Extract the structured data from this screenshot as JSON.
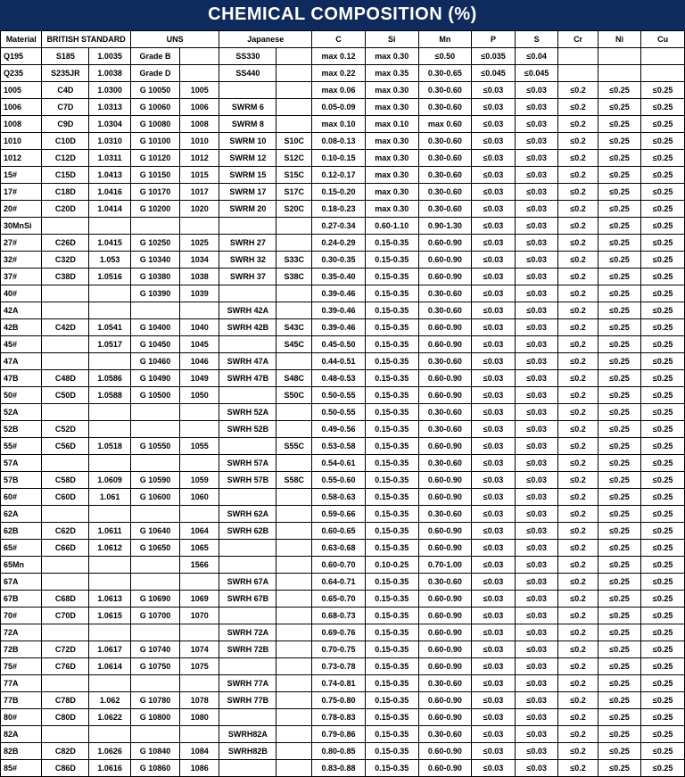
{
  "title": "CHEMICAL COMPOSITION (%)",
  "header": {
    "groups": [
      {
        "label": "Material",
        "span": 1
      },
      {
        "label": "BRITISH STANDARD",
        "span": 2
      },
      {
        "label": "UNS",
        "span": 2
      },
      {
        "label": "Japanese",
        "span": 2
      },
      {
        "label": "C",
        "span": 1
      },
      {
        "label": "Si",
        "span": 1
      },
      {
        "label": "Mn",
        "span": 1
      },
      {
        "label": "P",
        "span": 1
      },
      {
        "label": "S",
        "span": 1
      },
      {
        "label": "Cr",
        "span": 1
      },
      {
        "label": "Ni",
        "span": 1
      },
      {
        "label": "Cu",
        "span": 1
      }
    ]
  },
  "rows": [
    [
      "Q195",
      "S185",
      "1.0035",
      "Grade B",
      "",
      "SS330",
      "",
      "max 0.12",
      "max 0.30",
      "≤0.50",
      "≤0.035",
      "≤0.04",
      "",
      "",
      ""
    ],
    [
      "Q235",
      "S235JR",
      "1.0038",
      "Grade D",
      "",
      "SS440",
      "",
      "max 0.22",
      "max 0.35",
      "0.30-0.65",
      "≤0.045",
      "≤0.045",
      "",
      "",
      ""
    ],
    [
      "1005",
      "C4D",
      "1.0300",
      "G 10050",
      "1005",
      "",
      "",
      "max 0.06",
      "max 0.30",
      "0.30-0.60",
      "≤0.03",
      "≤0.03",
      "≤0.2",
      "≤0.25",
      "≤0.25"
    ],
    [
      "1006",
      "C7D",
      "1.0313",
      "G 10060",
      "1006",
      "SWRM 6",
      "",
      "0.05-0.09",
      "max 0.30",
      "0.30-0.60",
      "≤0.03",
      "≤0.03",
      "≤0.2",
      "≤0.25",
      "≤0.25"
    ],
    [
      "1008",
      "C9D",
      "1.0304",
      "G 10080",
      "1008",
      "SWRM 8",
      "",
      "max 0.10",
      "max 0.10",
      "max 0.60",
      "≤0.03",
      "≤0.03",
      "≤0.2",
      "≤0.25",
      "≤0.25"
    ],
    [
      "1010",
      "C10D",
      "1.0310",
      "G 10100",
      "1010",
      "SWRM 10",
      "S10C",
      "0.08-0.13",
      "max 0.30",
      "0.30-0.60",
      "≤0.03",
      "≤0.03",
      "≤0.2",
      "≤0.25",
      "≤0.25"
    ],
    [
      "1012",
      "C12D",
      "1.0311",
      "G 10120",
      "1012",
      "SWRM 12",
      "S12C",
      "0.10-0.15",
      "max 0.30",
      "0.30-0.60",
      "≤0.03",
      "≤0.03",
      "≤0.2",
      "≤0.25",
      "≤0.25"
    ],
    [
      "15#",
      "C15D",
      "1.0413",
      "G 10150",
      "1015",
      "SWRM 15",
      "S15C",
      "0.12-0.17",
      "max 0.30",
      "0.30-0.60",
      "≤0.03",
      "≤0.03",
      "≤0.2",
      "≤0.25",
      "≤0.25"
    ],
    [
      "17#",
      "C18D",
      "1.0416",
      "G 10170",
      "1017",
      "SWRM 17",
      "S17C",
      "0.15-0.20",
      "max 0.30",
      "0.30-0.60",
      "≤0.03",
      "≤0.03",
      "≤0.2",
      "≤0.25",
      "≤0.25"
    ],
    [
      "20#",
      "C20D",
      "1.0414",
      "G 10200",
      "1020",
      "SWRM 20",
      "S20C",
      "0.18-0.23",
      "max 0.30",
      "0.30-0.60",
      "≤0.03",
      "≤0.03",
      "≤0.2",
      "≤0.25",
      "≤0.25"
    ],
    [
      "30MnSi",
      "",
      "",
      "",
      "",
      "",
      "",
      "0.27-0.34",
      "0.60-1.10",
      "0.90-1.30",
      "≤0.03",
      "≤0.03",
      "≤0.2",
      "≤0.25",
      "≤0.25"
    ],
    [
      "27#",
      "C26D",
      "1.0415",
      "G 10250",
      "1025",
      "SWRH 27",
      "",
      "0.24-0.29",
      "0.15-0.35",
      "0.60-0.90",
      "≤0.03",
      "≤0.03",
      "≤0.2",
      "≤0.25",
      "≤0.25"
    ],
    [
      "32#",
      "C32D",
      "1.053",
      "G 10340",
      "1034",
      "SWRH 32",
      "S33C",
      "0.30-0.35",
      "0.15-0.35",
      "0.60-0.90",
      "≤0.03",
      "≤0.03",
      "≤0.2",
      "≤0.25",
      "≤0.25"
    ],
    [
      "37#",
      "C38D",
      "1.0516",
      "G 10380",
      "1038",
      "SWRH 37",
      "S38C",
      "0.35-0.40",
      "0.15-0.35",
      "0.60-0.90",
      "≤0.03",
      "≤0.03",
      "≤0.2",
      "≤0.25",
      "≤0.25"
    ],
    [
      "40#",
      "",
      "",
      "G 10390",
      "1039",
      "",
      "",
      "0.39-0.46",
      "0.15-0.35",
      "0.30-0.60",
      "≤0.03",
      "≤0.03",
      "≤0.2",
      "≤0.25",
      "≤0.25"
    ],
    [
      "42A",
      "",
      "",
      "",
      "",
      "SWRH 42A",
      "",
      "0.39-0.46",
      "0.15-0.35",
      "0.30-0.60",
      "≤0.03",
      "≤0.03",
      "≤0.2",
      "≤0.25",
      "≤0.25"
    ],
    [
      "42B",
      "C42D",
      "1.0541",
      "G 10400",
      "1040",
      "SWRH 42B",
      "S43C",
      "0.39-0.46",
      "0.15-0.35",
      "0.60-0.90",
      "≤0.03",
      "≤0.03",
      "≤0.2",
      "≤0.25",
      "≤0.25"
    ],
    [
      "45#",
      "",
      "1.0517",
      "G 10450",
      "1045",
      "",
      "S45C",
      "0.45-0.50",
      "0.15-0.35",
      "0.60-0.90",
      "≤0.03",
      "≤0.03",
      "≤0.2",
      "≤0.25",
      "≤0.25"
    ],
    [
      "47A",
      "",
      "",
      "G 10460",
      "1046",
      "SWRH 47A",
      "",
      "0.44-0.51",
      "0.15-0.35",
      "0.30-0.60",
      "≤0.03",
      "≤0.03",
      "≤0.2",
      "≤0.25",
      "≤0.25"
    ],
    [
      "47B",
      "C48D",
      "1.0586",
      "G 10490",
      "1049",
      "SWRH 47B",
      "S48C",
      "0.48-0.53",
      "0.15-0.35",
      "0.60-0.90",
      "≤0.03",
      "≤0.03",
      "≤0.2",
      "≤0.25",
      "≤0.25"
    ],
    [
      "50#",
      "C50D",
      "1.0588",
      "G 10500",
      "1050",
      "",
      "S50C",
      "0.50-0.55",
      "0.15-0.35",
      "0.60-0.90",
      "≤0.03",
      "≤0.03",
      "≤0.2",
      "≤0.25",
      "≤0.25"
    ],
    [
      "52A",
      "",
      "",
      "",
      "",
      "SWRH 52A",
      "",
      "0.50-0.55",
      "0.15-0.35",
      "0.30-0.60",
      "≤0.03",
      "≤0.03",
      "≤0.2",
      "≤0.25",
      "≤0.25"
    ],
    [
      "52B",
      "C52D",
      "",
      "",
      "",
      "SWRH 52B",
      "",
      "0.49-0.56",
      "0.15-0.35",
      "0.30-0.60",
      "≤0.03",
      "≤0.03",
      "≤0.2",
      "≤0.25",
      "≤0.25"
    ],
    [
      "55#",
      "C56D",
      "1.0518",
      "G 10550",
      "1055",
      "",
      "S55C",
      "0.53-0.58",
      "0.15-0.35",
      "0.60-0.90",
      "≤0.03",
      "≤0.03",
      "≤0.2",
      "≤0.25",
      "≤0.25"
    ],
    [
      "57A",
      "",
      "",
      "",
      "",
      "SWRH 57A",
      "",
      "0.54-0.61",
      "0.15-0.35",
      "0.30-0.60",
      "≤0.03",
      "≤0.03",
      "≤0.2",
      "≤0.25",
      "≤0.25"
    ],
    [
      "57B",
      "C58D",
      "1.0609",
      "G 10590",
      "1059",
      "SWRH 57B",
      "S58C",
      "0.55-0.60",
      "0.15-0.35",
      "0.60-0.90",
      "≤0.03",
      "≤0.03",
      "≤0.2",
      "≤0.25",
      "≤0.25"
    ],
    [
      "60#",
      "C60D",
      "1.061",
      "G 10600",
      "1060",
      "",
      "",
      "0.58-0.63",
      "0.15-0.35",
      "0.60-0.90",
      "≤0.03",
      "≤0.03",
      "≤0.2",
      "≤0.25",
      "≤0.25"
    ],
    [
      "62A",
      "",
      "",
      "",
      "",
      "SWRH 62A",
      "",
      "0.59-0.66",
      "0.15-0.35",
      "0.30-0.60",
      "≤0.03",
      "≤0.03",
      "≤0.2",
      "≤0.25",
      "≤0.25"
    ],
    [
      "62B",
      "C62D",
      "1.0611",
      "G 10640",
      "1064",
      "SWRH 62B",
      "",
      "0.60-0.65",
      "0.15-0.35",
      "0.60-0.90",
      "≤0.03",
      "≤0.03",
      "≤0.2",
      "≤0.25",
      "≤0.25"
    ],
    [
      "65#",
      "C66D",
      "1.0612",
      "G 10650",
      "1065",
      "",
      "",
      "0.63-0.68",
      "0.15-0.35",
      "0.60-0.90",
      "≤0.03",
      "≤0.03",
      "≤0.2",
      "≤0.25",
      "≤0.25"
    ],
    [
      "65Mn",
      "",
      "",
      "",
      "1566",
      "",
      "",
      "0.60-0.70",
      "0.10-0.25",
      "0.70-1.00",
      "≤0.03",
      "≤0.03",
      "≤0.2",
      "≤0.25",
      "≤0.25"
    ],
    [
      "67A",
      "",
      "",
      "",
      "",
      "SWRH 67A",
      "",
      "0.64-0.71",
      "0.15-0.35",
      "0.30-0.60",
      "≤0.03",
      "≤0.03",
      "≤0.2",
      "≤0.25",
      "≤0.25"
    ],
    [
      "67B",
      "C68D",
      "1.0613",
      "G 10690",
      "1069",
      "SWRH 67B",
      "",
      "0.65-0.70",
      "0.15-0.35",
      "0.60-0.90",
      "≤0.03",
      "≤0.03",
      "≤0.2",
      "≤0.25",
      "≤0.25"
    ],
    [
      "70#",
      "C70D",
      "1.0615",
      "G 10700",
      "1070",
      "",
      "",
      "0.68-0.73",
      "0.15-0.35",
      "0.60-0.90",
      "≤0.03",
      "≤0.03",
      "≤0.2",
      "≤0.25",
      "≤0.25"
    ],
    [
      "72A",
      "",
      "",
      "",
      "",
      "SWRH 72A",
      "",
      "0.69-0.76",
      "0.15-0.35",
      "0.60-0.90",
      "≤0.03",
      "≤0.03",
      "≤0.2",
      "≤0.25",
      "≤0.25"
    ],
    [
      "72B",
      "C72D",
      "1.0617",
      "G 10740",
      "1074",
      "SWRH 72B",
      "",
      "0.70-0.75",
      "0.15-0.35",
      "0.60-0.90",
      "≤0.03",
      "≤0.03",
      "≤0.2",
      "≤0.25",
      "≤0.25"
    ],
    [
      "75#",
      "C76D",
      "1.0614",
      "G 10750",
      "1075",
      "",
      "",
      "0.73-0.78",
      "0.15-0.35",
      "0.60-0.90",
      "≤0.03",
      "≤0.03",
      "≤0.2",
      "≤0.25",
      "≤0.25"
    ],
    [
      "77A",
      "",
      "",
      "",
      "",
      "SWRH 77A",
      "",
      "0.74-0.81",
      "0.15-0.35",
      "0.30-0.60",
      "≤0.03",
      "≤0.03",
      "≤0.2",
      "≤0.25",
      "≤0.25"
    ],
    [
      "77B",
      "C78D",
      "1.062",
      "G 10780",
      "1078",
      "SWRH 77B",
      "",
      "0.75-0.80",
      "0.15-0.35",
      "0.60-0.90",
      "≤0.03",
      "≤0.03",
      "≤0.2",
      "≤0.25",
      "≤0.25"
    ],
    [
      "80#",
      "C80D",
      "1.0622",
      "G 10800",
      "1080",
      "",
      "",
      "0.78-0.83",
      "0.15-0.35",
      "0.60-0.90",
      "≤0.03",
      "≤0.03",
      "≤0.2",
      "≤0.25",
      "≤0.25"
    ],
    [
      "82A",
      "",
      "",
      "",
      "",
      "SWRH82A",
      "",
      "0.79-0.86",
      "0.15-0.35",
      "0.30-0.60",
      "≤0.03",
      "≤0.03",
      "≤0.2",
      "≤0.25",
      "≤0.25"
    ],
    [
      "82B",
      "C82D",
      "1.0626",
      "G 10840",
      "1084",
      "SWRH82B",
      "",
      "0.80-0.85",
      "0.15-0.35",
      "0.60-0.90",
      "≤0.03",
      "≤0.03",
      "≤0.2",
      "≤0.25",
      "≤0.25"
    ],
    [
      "85#",
      "C86D",
      "1.0616",
      "G 10860",
      "1086",
      "",
      "",
      "0.83-0.88",
      "0.15-0.35",
      "0.60-0.90",
      "≤0.03",
      "≤0.03",
      "≤0.2",
      "≤0.25",
      "≤0.25"
    ]
  ],
  "table_style": {
    "title_bg": "#0f2a5c",
    "title_color": "#ffffff",
    "border_color": "#000000",
    "font_family": "Arial",
    "header_fontsize": 9,
    "cell_fontsize": 9
  }
}
